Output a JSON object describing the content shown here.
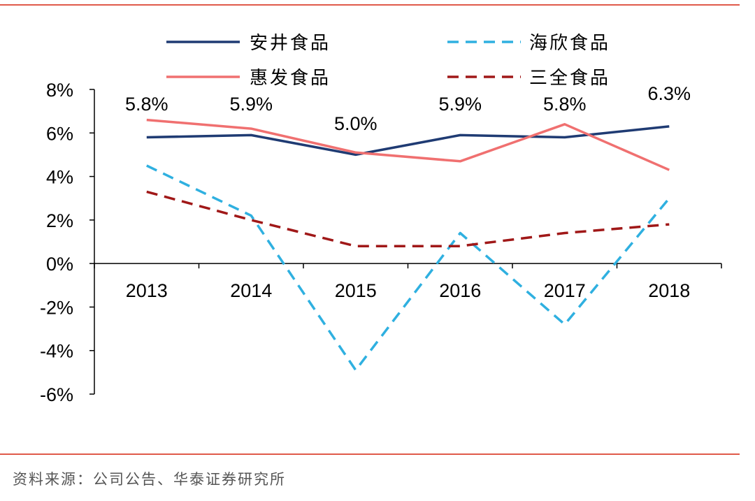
{
  "chart_data": {
    "type": "line",
    "categories": [
      "2013",
      "2014",
      "2015",
      "2016",
      "2017",
      "2018"
    ],
    "series": [
      {
        "name": "安井食品",
        "values": [
          5.8,
          5.9,
          5.0,
          5.9,
          5.8,
          6.3
        ],
        "color": "#1f3b73",
        "dash": "solid"
      },
      {
        "name": "海欣食品",
        "values": [
          4.5,
          2.2,
          -4.9,
          1.4,
          -2.8,
          3.0
        ],
        "color": "#2fb0e0",
        "dash": "dashed"
      },
      {
        "name": "惠发食品",
        "values": [
          6.6,
          6.2,
          5.1,
          4.7,
          6.4,
          4.3
        ],
        "color": "#f07070",
        "dash": "solid"
      },
      {
        "name": "三全食品",
        "values": [
          3.3,
          2.0,
          0.8,
          0.8,
          1.4,
          1.8
        ],
        "color": "#a01818",
        "dash": "dashed"
      }
    ],
    "data_labels": [
      "5.8%",
      "5.9%",
      "5.0%",
      "5.9%",
      "5.8%",
      "6.3%"
    ],
    "y_ticks": [
      "8%",
      "6%",
      "4%",
      "2%",
      "0%",
      "-2%",
      "-4%",
      "-6%"
    ],
    "ylim": [
      -6,
      8
    ],
    "legend_position": "top",
    "grid": false,
    "accent_color": "#e05a4a"
  },
  "footer": {
    "source": "资料来源：公司公告、华泰证券研究所"
  }
}
